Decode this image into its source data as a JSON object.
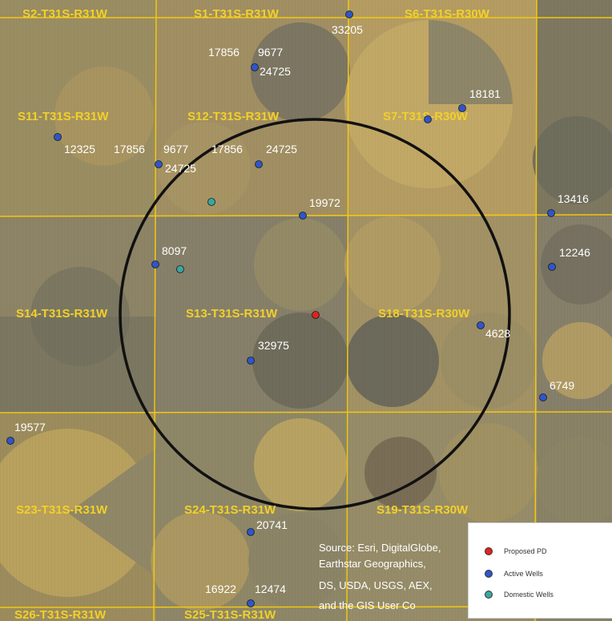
{
  "map": {
    "section_labels": [
      "S2-T31S-R31W",
      "S1-T31S-R31W",
      "S6-T31S-R30W",
      "S11-T31S-R31W",
      "S12-T31S-R31W",
      "S7-T31S-R30W",
      "S14-T31S-R31W",
      "S13-T31S-R31W",
      "S18-T31S-R30W",
      "S23-T31S-R31W",
      "S24-T31S-R31W",
      "S19-T31S-R30W",
      "S26-T31S-R31W",
      "S25-T31S-R31W"
    ],
    "well_labels": [
      "33205",
      "17856",
      "9677",
      "24725",
      "18181",
      "12325",
      "17856",
      "9677",
      "24725",
      "17856",
      "24725",
      "19972",
      "13416",
      "8097",
      "12246",
      "4628",
      "32975",
      "6749",
      "19577",
      "20741",
      "16922",
      "12474"
    ],
    "credit_lines": [
      "Source: Esri, DigitalGlobe,",
      "Earthstar Geographics,",
      "DS, USDA, USGS, AEX,",
      "and the GIS User Co"
    ],
    "colors": {
      "grid": "#f2c80f",
      "proposed": "#e0231c",
      "active": "#2f55c9",
      "domestic": "#3aa6a0",
      "circle": "#111111"
    }
  },
  "legend": {
    "items": [
      {
        "label": "Proposed PD",
        "color": "#e0231c"
      },
      {
        "label": "Active Wells",
        "color": "#2f55c9"
      },
      {
        "label": "Domestic Wells",
        "color": "#3aa6a0"
      }
    ]
  }
}
